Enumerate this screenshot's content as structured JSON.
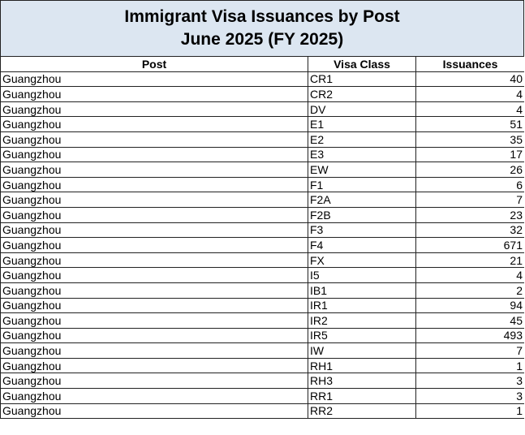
{
  "title": {
    "line1": "Immigrant Visa Issuances by Post",
    "line2": "June 2025 (FY 2025)"
  },
  "columns": [
    "Post",
    "Visa Class",
    "Issuances"
  ],
  "rows": [
    [
      "Guangzhou",
      "CR1",
      "40"
    ],
    [
      "Guangzhou",
      "CR2",
      "4"
    ],
    [
      "Guangzhou",
      "DV",
      "4"
    ],
    [
      "Guangzhou",
      "E1",
      "51"
    ],
    [
      "Guangzhou",
      "E2",
      "35"
    ],
    [
      "Guangzhou",
      "E3",
      "17"
    ],
    [
      "Guangzhou",
      "EW",
      "26"
    ],
    [
      "Guangzhou",
      "F1",
      "6"
    ],
    [
      "Guangzhou",
      "F2A",
      "7"
    ],
    [
      "Guangzhou",
      "F2B",
      "23"
    ],
    [
      "Guangzhou",
      "F3",
      "32"
    ],
    [
      "Guangzhou",
      "F4",
      "671"
    ],
    [
      "Guangzhou",
      "FX",
      "21"
    ],
    [
      "Guangzhou",
      "I5",
      "4"
    ],
    [
      "Guangzhou",
      "IB1",
      "2"
    ],
    [
      "Guangzhou",
      "IR1",
      "94"
    ],
    [
      "Guangzhou",
      "IR2",
      "45"
    ],
    [
      "Guangzhou",
      "IR5",
      "493"
    ],
    [
      "Guangzhou",
      "IW",
      "7"
    ],
    [
      "Guangzhou",
      "RH1",
      "1"
    ],
    [
      "Guangzhou",
      "RH3",
      "3"
    ],
    [
      "Guangzhou",
      "RR1",
      "3"
    ],
    [
      "Guangzhou",
      "RR2",
      "1"
    ]
  ],
  "colors": {
    "title_background": "#dce6f1",
    "border": "#222222"
  }
}
